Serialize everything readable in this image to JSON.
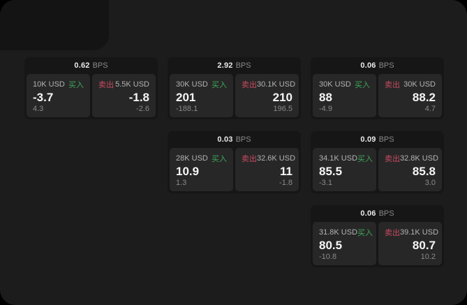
{
  "labels": {
    "bps_unit": "BPS",
    "buy": "买入",
    "sell": "卖出"
  },
  "colors": {
    "outer_background": "#000000",
    "surface": "#1c1c1c",
    "card_background": "#161616",
    "panel_background": "#272727",
    "buy_green": "#3fa75a",
    "sell_red": "#ca4b60",
    "primary_text": "#f5f5f5",
    "muted_text": "#8a8a8a"
  },
  "cards": [
    {
      "row": 1,
      "col": 1,
      "bps": "0.62",
      "buy": {
        "size": "10K USD",
        "price": "-3.7",
        "delta": "4.3"
      },
      "sell": {
        "size": "5.5K USD",
        "price": "-1.8",
        "delta": "-2.6"
      }
    },
    {
      "row": 1,
      "col": 2,
      "bps": "2.92",
      "buy": {
        "size": "30K USD",
        "price": "201",
        "delta": "-188.1"
      },
      "sell": {
        "size": "30.1K USD",
        "price": "210",
        "delta": "196.5"
      }
    },
    {
      "row": 1,
      "col": 3,
      "bps": "0.06",
      "buy": {
        "size": "30K USD",
        "price": "88",
        "delta": "-4.9"
      },
      "sell": {
        "size": "30K USD",
        "price": "88.2",
        "delta": "4.7"
      }
    },
    {
      "row": 2,
      "col": 2,
      "bps": "0.03",
      "buy": {
        "size": "28K USD",
        "price": "10.9",
        "delta": "1.3"
      },
      "sell": {
        "size": "32.6K USD",
        "price": "11",
        "delta": "-1.8"
      }
    },
    {
      "row": 2,
      "col": 3,
      "bps": "0.09",
      "buy": {
        "size": "34.1K USD",
        "price": "85.5",
        "delta": "-3.1"
      },
      "sell": {
        "size": "32.8K USD",
        "price": "85.8",
        "delta": "3.0"
      }
    },
    {
      "row": 3,
      "col": 3,
      "bps": "0.06",
      "buy": {
        "size": "31.8K USD",
        "price": "80.5",
        "delta": "-10.8"
      },
      "sell": {
        "size": "39.1K USD",
        "price": "80.7",
        "delta": "10.2"
      }
    }
  ]
}
